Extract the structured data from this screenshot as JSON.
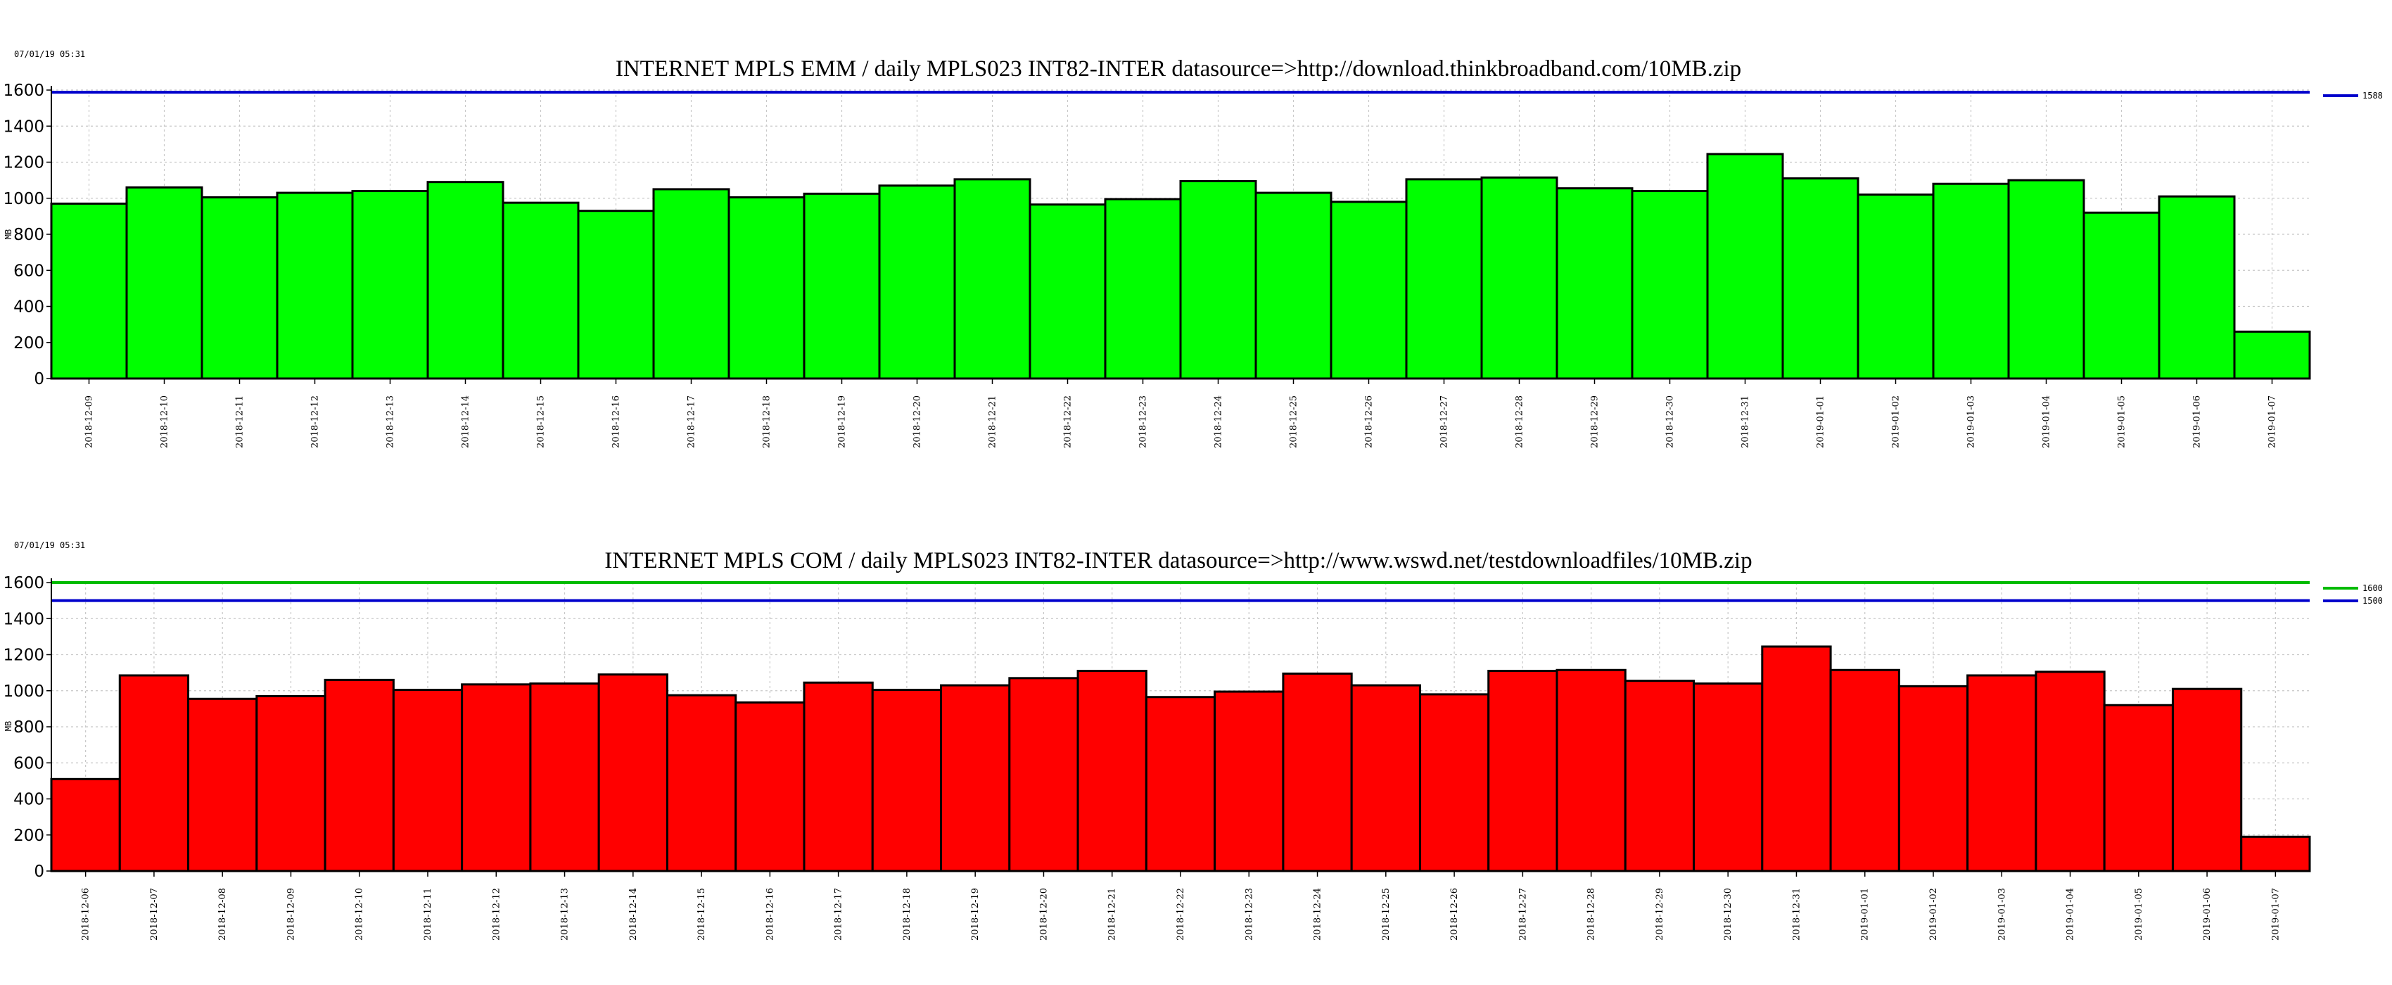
{
  "chart_data": [
    {
      "type": "bar",
      "timestamp": "07/01/19 05:31",
      "title": "INTERNET MPLS EMM / daily MPLS023 INT82-INTER datasource=>http://download.thinkbroadband.com/10MB.zip",
      "ylabel": "MB",
      "xlabel": "",
      "ylim": [
        0,
        1600
      ],
      "yticks": [
        0,
        200,
        400,
        600,
        800,
        1000,
        1200,
        1400,
        1600
      ],
      "grid": true,
      "legend_position": "right",
      "bar_color": "#00ff00",
      "categories": [
        "2018-12-09",
        "2018-12-10",
        "2018-12-11",
        "2018-12-12",
        "2018-12-13",
        "2018-12-14",
        "2018-12-15",
        "2018-12-16",
        "2018-12-17",
        "2018-12-18",
        "2018-12-19",
        "2018-12-20",
        "2018-12-21",
        "2018-12-22",
        "2018-12-23",
        "2018-12-24",
        "2018-12-25",
        "2018-12-26",
        "2018-12-27",
        "2018-12-28",
        "2018-12-29",
        "2018-12-30",
        "2018-12-31",
        "2019-01-01",
        "2019-01-02",
        "2019-01-03",
        "2019-01-04",
        "2019-01-05",
        "2019-01-06",
        "2019-01-07"
      ],
      "values": [
        970,
        1060,
        1005,
        1030,
        1040,
        1090,
        975,
        930,
        1050,
        1005,
        1025,
        1070,
        1105,
        965,
        995,
        1095,
        1030,
        980,
        1105,
        1115,
        1055,
        1040,
        1245,
        1110,
        1020,
        1080,
        1100,
        920,
        1010,
        260
      ],
      "thresholds": [
        {
          "value": 1588,
          "label": "1588",
          "color": "#0000cc"
        }
      ]
    },
    {
      "type": "bar",
      "timestamp": "07/01/19 05:31",
      "title": "INTERNET MPLS COM / daily MPLS023 INT82-INTER datasource=>http://www.wswd.net/testdownloadfiles/10MB.zip",
      "ylabel": "MB",
      "xlabel": "",
      "ylim": [
        0,
        1600
      ],
      "yticks": [
        0,
        200,
        400,
        600,
        800,
        1000,
        1200,
        1400,
        1600
      ],
      "grid": true,
      "legend_position": "right",
      "bar_color": "#ff0000",
      "categories": [
        "2018-12-06",
        "2018-12-07",
        "2018-12-08",
        "2018-12-09",
        "2018-12-10",
        "2018-12-11",
        "2018-12-12",
        "2018-12-13",
        "2018-12-14",
        "2018-12-15",
        "2018-12-16",
        "2018-12-17",
        "2018-12-18",
        "2018-12-19",
        "2018-12-20",
        "2018-12-21",
        "2018-12-22",
        "2018-12-23",
        "2018-12-24",
        "2018-12-25",
        "2018-12-26",
        "2018-12-27",
        "2018-12-28",
        "2018-12-29",
        "2018-12-30",
        "2018-12-31",
        "2019-01-01",
        "2019-01-02",
        "2019-01-03",
        "2019-01-04",
        "2019-01-05",
        "2019-01-06",
        "2019-01-07"
      ],
      "values": [
        510,
        1085,
        955,
        970,
        1060,
        1005,
        1035,
        1040,
        1090,
        975,
        935,
        1045,
        1005,
        1030,
        1070,
        1110,
        965,
        995,
        1095,
        1030,
        980,
        1110,
        1115,
        1055,
        1040,
        1245,
        1115,
        1025,
        1085,
        1105,
        920,
        1010,
        190
      ],
      "thresholds": [
        {
          "value": 1600,
          "label": "1600",
          "color": "#00bb00"
        },
        {
          "value": 1500,
          "label": "1500",
          "color": "#0000cc"
        }
      ]
    }
  ]
}
